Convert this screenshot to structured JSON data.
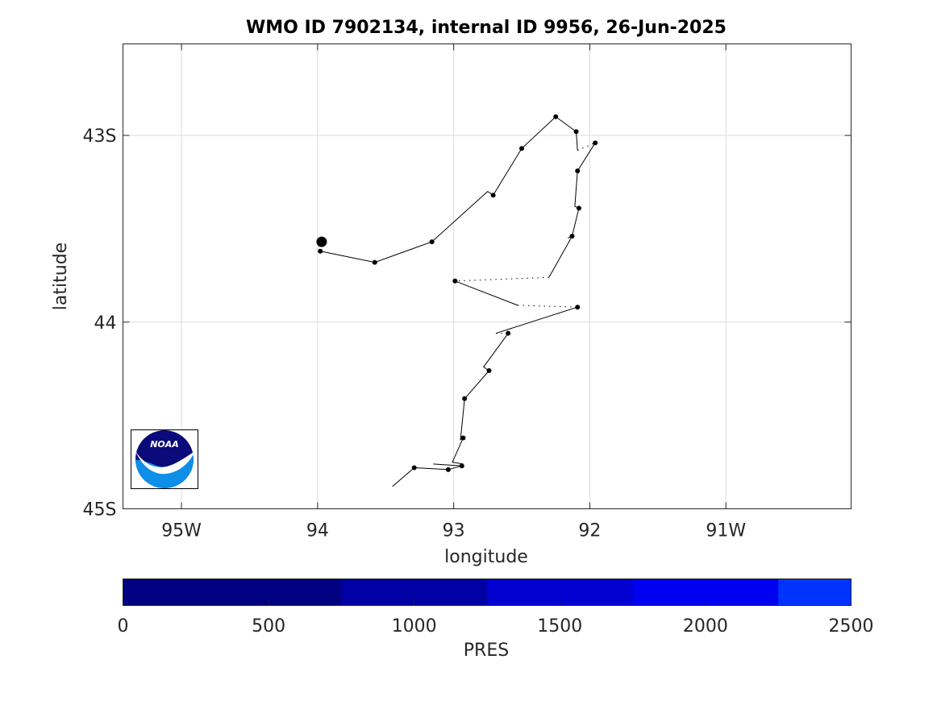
{
  "chart_data": {
    "type": "line",
    "title": "WMO ID 7902134, internal ID 9956, 26-Jun-2025",
    "xlabel": "longitude",
    "ylabel": "latitude",
    "xlim": [
      -95.43,
      -90.08
    ],
    "ylim": [
      -45.0,
      -42.51
    ],
    "grid": true,
    "x_ticks": [
      {
        "value": -95,
        "label": "95W"
      },
      {
        "value": -94,
        "label": "94"
      },
      {
        "value": -93,
        "label": "93"
      },
      {
        "value": -92,
        "label": "92"
      },
      {
        "value": -91,
        "label": "91W"
      }
    ],
    "y_ticks": [
      {
        "value": -43,
        "label": "43S"
      },
      {
        "value": -44,
        "label": "44"
      },
      {
        "value": -45,
        "label": "45S"
      }
    ],
    "profiles": [
      {
        "lon": -93.98,
        "lat": -43.62
      },
      {
        "lon": -93.58,
        "lat": -43.68
      },
      {
        "lon": -93.16,
        "lat": -43.57
      },
      {
        "lon": -92.71,
        "lat": -43.32
      },
      {
        "lon": -92.5,
        "lat": -43.07
      },
      {
        "lon": -92.25,
        "lat": -42.9
      },
      {
        "lon": -92.1,
        "lat": -42.98
      },
      {
        "lon": -91.96,
        "lat": -43.04
      },
      {
        "lon": -92.09,
        "lat": -43.19
      },
      {
        "lon": -92.08,
        "lat": -43.39
      },
      {
        "lon": -92.13,
        "lat": -43.54
      },
      {
        "lon": -92.99,
        "lat": -43.78
      },
      {
        "lon": -92.09,
        "lat": -43.92
      },
      {
        "lon": -92.6,
        "lat": -44.06
      },
      {
        "lon": -92.74,
        "lat": -44.26
      },
      {
        "lon": -92.92,
        "lat": -44.41
      },
      {
        "lon": -92.93,
        "lat": -44.62
      },
      {
        "lon": -92.94,
        "lat": -44.77
      },
      {
        "lon": -93.04,
        "lat": -44.79
      },
      {
        "lon": -93.29,
        "lat": -44.78
      }
    ],
    "latest_position": {
      "lon": -93.97,
      "lat": -43.57
    },
    "trajectory_segments": [
      {
        "style": "solid",
        "points": [
          [
            -93.98,
            -43.62
          ],
          [
            -93.58,
            -43.68
          ],
          [
            -93.16,
            -43.57
          ],
          [
            -92.75,
            -43.3
          ],
          [
            -92.71,
            -43.32
          ]
        ]
      },
      {
        "style": "solid",
        "points": [
          [
            -92.71,
            -43.32
          ],
          [
            -92.5,
            -43.07
          ],
          [
            -92.25,
            -42.9
          ],
          [
            -92.1,
            -42.98
          ],
          [
            -92.09,
            -43.08
          ]
        ]
      },
      {
        "style": "dotted",
        "points": [
          [
            -92.09,
            -43.08
          ],
          [
            -91.96,
            -43.04
          ]
        ]
      },
      {
        "style": "solid",
        "points": [
          [
            -91.96,
            -43.04
          ],
          [
            -92.09,
            -43.19
          ],
          [
            -92.11,
            -43.38
          ],
          [
            -92.08,
            -43.39
          ]
        ]
      },
      {
        "style": "solid",
        "points": [
          [
            -92.08,
            -43.39
          ],
          [
            -92.13,
            -43.54
          ],
          [
            -92.16,
            -43.55
          ]
        ]
      },
      {
        "style": "solid",
        "points": [
          [
            -92.13,
            -43.54
          ],
          [
            -92.3,
            -43.76
          ]
        ]
      },
      {
        "style": "dotted",
        "points": [
          [
            -92.3,
            -43.76
          ],
          [
            -92.99,
            -43.78
          ]
        ]
      },
      {
        "style": "solid",
        "points": [
          [
            -92.99,
            -43.78
          ],
          [
            -92.53,
            -43.91
          ]
        ]
      },
      {
        "style": "dotted",
        "points": [
          [
            -92.53,
            -43.91
          ],
          [
            -92.09,
            -43.92
          ]
        ]
      },
      {
        "style": "solid",
        "points": [
          [
            -92.09,
            -43.92
          ],
          [
            -92.69,
            -44.06
          ]
        ]
      },
      {
        "style": "dotted",
        "points": [
          [
            -92.69,
            -44.06
          ],
          [
            -92.6,
            -44.06
          ]
        ]
      },
      {
        "style": "solid",
        "points": [
          [
            -92.6,
            -44.06
          ],
          [
            -92.78,
            -44.24
          ],
          [
            -92.74,
            -44.26
          ]
        ]
      },
      {
        "style": "solid",
        "points": [
          [
            -92.74,
            -44.26
          ],
          [
            -92.92,
            -44.41
          ],
          [
            -92.95,
            -44.63
          ],
          [
            -92.93,
            -44.62
          ]
        ]
      },
      {
        "style": "solid",
        "points": [
          [
            -92.93,
            -44.62
          ],
          [
            -93.01,
            -44.75
          ],
          [
            -92.93,
            -44.76
          ]
        ]
      },
      {
        "style": "solid",
        "points": [
          [
            -93.15,
            -44.76
          ],
          [
            -92.94,
            -44.77
          ]
        ]
      },
      {
        "style": "solid",
        "points": [
          [
            -92.94,
            -44.77
          ],
          [
            -93.04,
            -44.79
          ]
        ]
      },
      {
        "style": "solid",
        "points": [
          [
            -93.04,
            -44.79
          ],
          [
            -93.29,
            -44.78
          ],
          [
            -93.45,
            -44.88
          ]
        ]
      }
    ],
    "colorbar": {
      "label": "PRES",
      "min": 0,
      "max": 2500,
      "ticks": [
        0,
        500,
        1000,
        1500,
        2000,
        2500
      ],
      "bands": [
        {
          "from": 0,
          "to": 750,
          "color": "#000080"
        },
        {
          "from": 750,
          "to": 1250,
          "color": "#0000a5"
        },
        {
          "from": 1250,
          "to": 1750,
          "color": "#0000d0"
        },
        {
          "from": 1750,
          "to": 2250,
          "color": "#0000f0"
        },
        {
          "from": 2250,
          "to": 2500,
          "color": "#0033ff"
        }
      ]
    }
  },
  "logo": {
    "text": "NOAA",
    "colors": {
      "dark": "#0a0a7a",
      "light": "#0d8fe8"
    }
  }
}
